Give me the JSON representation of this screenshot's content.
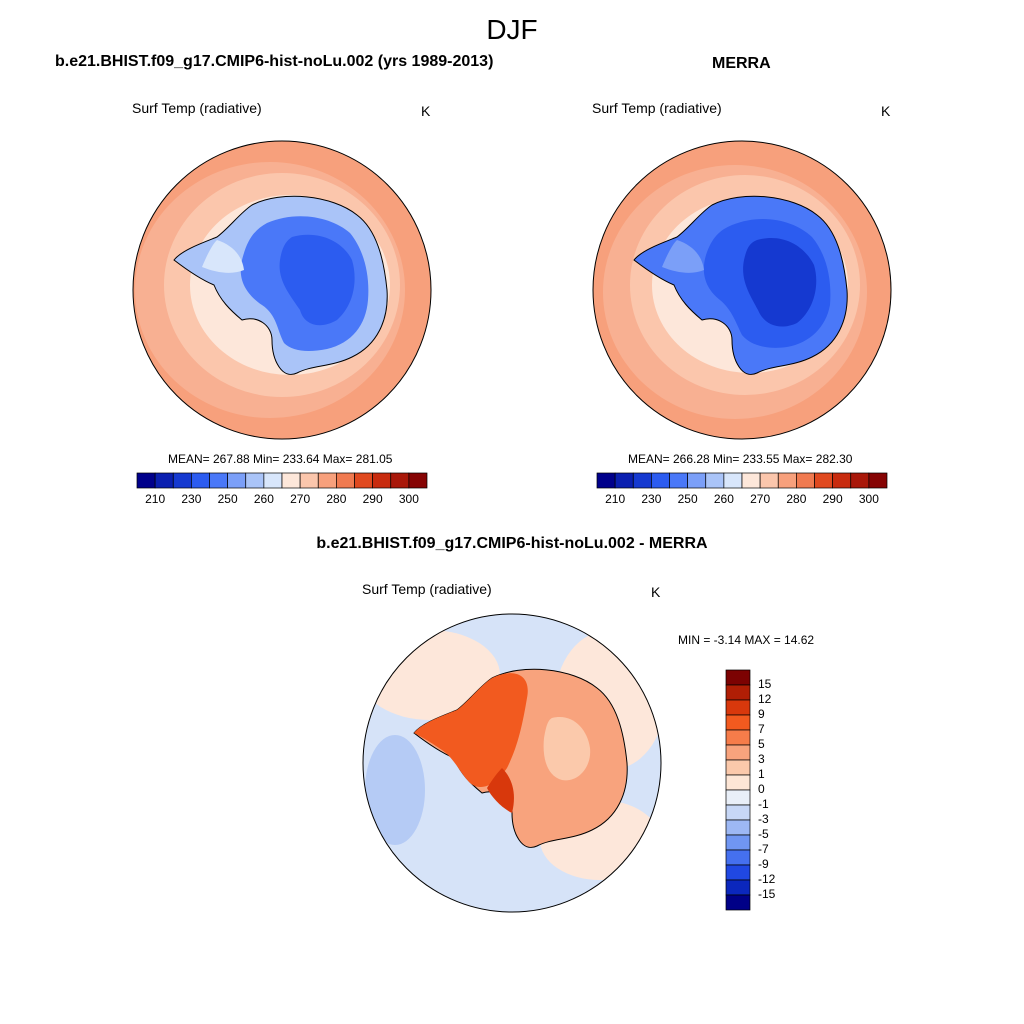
{
  "figure": {
    "season": "DJF"
  },
  "panels": [
    {
      "id": "model",
      "title": "b.e21.BHIST.f09_g17.CMIP6-hist-noLu.002 (yrs 1989-2013)",
      "variable": "Surf Temp (radiative)",
      "units": "K",
      "stats_text": "MEAN= 267.88  Min= 233.64  Max= 281.05",
      "mean": 267.88,
      "min": 233.64,
      "max": 281.05
    },
    {
      "id": "obs",
      "title": "MERRA",
      "variable": "Surf Temp (radiative)",
      "units": "K",
      "stats_text": "MEAN= 266.28  Min= 233.55  Max= 282.30",
      "mean": 266.28,
      "min": 233.55,
      "max": 282.3
    },
    {
      "id": "diff",
      "title": "b.e21.BHIST.f09_g17.CMIP6-hist-noLu.002 - MERRA",
      "variable": "Surf Temp (radiative)",
      "units": "K",
      "stats_text": "MIN =  -3.14 MAX =  14.62",
      "min": -3.14,
      "max": 14.62
    }
  ],
  "colorbars": {
    "absolute": {
      "orientation": "horizontal",
      "tick_labels": [
        "210",
        "230",
        "250",
        "260",
        "270",
        "280",
        "290",
        "300"
      ],
      "colors": [
        "#00008b",
        "#0a1fb0",
        "#1539d0",
        "#2c5cf0",
        "#4a78f8",
        "#7b9ff8",
        "#aac4f8",
        "#d8e6fb",
        "#fde7da",
        "#fbc6ac",
        "#f7a07c",
        "#f07a50",
        "#e0491f",
        "#c82b0e",
        "#a9180a",
        "#860404"
      ]
    },
    "difference": {
      "orientation": "vertical",
      "tick_labels": [
        "15",
        "12",
        "9",
        "7",
        "5",
        "3",
        "1",
        "0",
        "-1",
        "-3",
        "-5",
        "-7",
        "-9",
        "-12",
        "-15"
      ],
      "colors": [
        "#7c0202",
        "#b01e05",
        "#d8380c",
        "#f25a1f",
        "#f67c4a",
        "#f8a37d",
        "#fbc9ab",
        "#fde6d6",
        "#e9eff8",
        "#c7d7f6",
        "#9db8f4",
        "#7096f2",
        "#4570ef",
        "#2048e2",
        "#0b27bd",
        "#000087"
      ]
    }
  }
}
